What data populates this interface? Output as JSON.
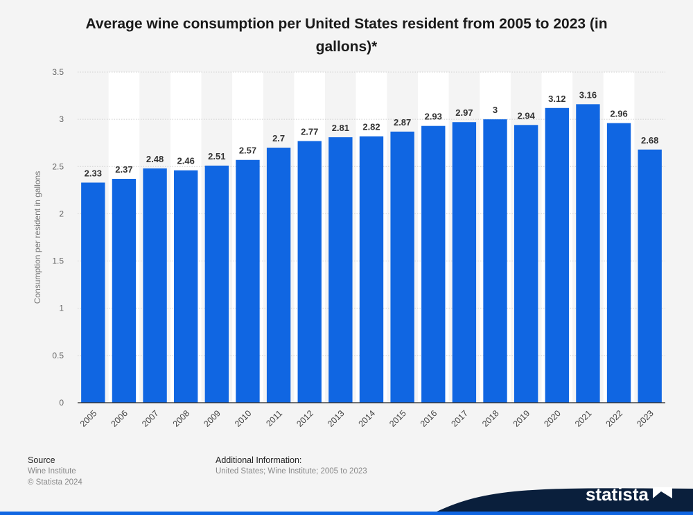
{
  "chart_data": {
    "type": "bar",
    "title": "Average wine consumption per United States resident from 2005 to 2023 (in gallons)*",
    "ylabel": "Consumption per resident in gallons",
    "xlabel": "",
    "categories": [
      "2005",
      "2006",
      "2007",
      "2008",
      "2009",
      "2010",
      "2011",
      "2012",
      "2013",
      "2014",
      "2015",
      "2016",
      "2017",
      "2018",
      "2019",
      "2020",
      "2021",
      "2022",
      "2023"
    ],
    "values": [
      2.33,
      2.37,
      2.48,
      2.46,
      2.51,
      2.57,
      2.7,
      2.77,
      2.81,
      2.82,
      2.87,
      2.93,
      2.97,
      3,
      2.94,
      3.12,
      3.16,
      2.96,
      2.68
    ],
    "value_labels": [
      "2.33",
      "2.37",
      "2.48",
      "2.46",
      "2.51",
      "2.57",
      "2.7",
      "2.77",
      "2.81",
      "2.82",
      "2.87",
      "2.93",
      "2.97",
      "3",
      "2.94",
      "3.12",
      "3.16",
      "2.96",
      "2.68"
    ],
    "ylim": [
      0,
      3.5
    ],
    "yticks": [
      "0",
      "0.5",
      "1",
      "1.5",
      "2",
      "2.5",
      "3",
      "3.5"
    ],
    "ytick_values": [
      0,
      0.5,
      1,
      1.5,
      2,
      2.5,
      3,
      3.5
    ],
    "grid": true,
    "bar_color": "#1066e2"
  },
  "footer": {
    "source_label": "Source",
    "source_lines": [
      "Wine Institute",
      "© Statista 2024"
    ],
    "info_label": "Additional Information:",
    "info_text": "United States; Wine Institute; 2005 to 2023",
    "brand": "statista",
    "brand_icon": "statista-logo-icon"
  },
  "colors": {
    "wave": "#0a1f3c",
    "accent_line": "#1066e2"
  }
}
